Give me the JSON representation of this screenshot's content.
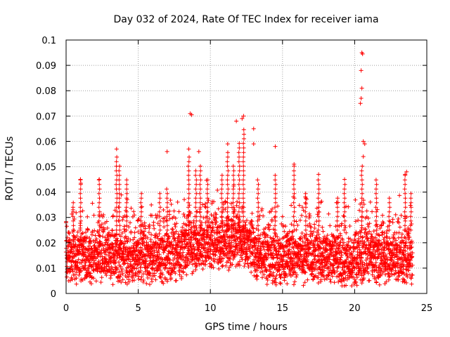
{
  "chart_data": {
    "type": "scatter",
    "title": "Day 032 of 2024, Rate Of TEC Index for receiver iama",
    "xlabel": "GPS time / hours",
    "ylabel": "ROTI / TECUs",
    "xlim": [
      0,
      25
    ],
    "ylim": [
      0,
      0.1
    ],
    "xticks": [
      "0",
      "5",
      "10",
      "15",
      "20",
      "25"
    ],
    "yticks": [
      "0",
      "0.01",
      "0.02",
      "0.03",
      "0.04",
      "0.05",
      "0.06",
      "0.07",
      "0.08",
      "0.09",
      "0.1"
    ],
    "grid": true,
    "marker": "+",
    "color": "#ff0000",
    "notable_points": [
      {
        "x": 8.6,
        "y": 0.071
      },
      {
        "x": 8.7,
        "y": 0.0705
      },
      {
        "x": 12.2,
        "y": 0.069
      },
      {
        "x": 12.3,
        "y": 0.07
      },
      {
        "x": 11.8,
        "y": 0.068
      },
      {
        "x": 13.0,
        "y": 0.065
      },
      {
        "x": 3.5,
        "y": 0.057
      },
      {
        "x": 8.5,
        "y": 0.057
      },
      {
        "x": 9.2,
        "y": 0.056
      },
      {
        "x": 7.0,
        "y": 0.056
      },
      {
        "x": 11.2,
        "y": 0.059
      },
      {
        "x": 13.0,
        "y": 0.059
      },
      {
        "x": 14.5,
        "y": 0.058
      },
      {
        "x": 20.5,
        "y": 0.095
      },
      {
        "x": 20.55,
        "y": 0.0945
      },
      {
        "x": 20.45,
        "y": 0.088
      },
      {
        "x": 20.5,
        "y": 0.081
      },
      {
        "x": 20.45,
        "y": 0.077
      },
      {
        "x": 20.4,
        "y": 0.075
      },
      {
        "x": 20.6,
        "y": 0.06
      },
      {
        "x": 20.7,
        "y": 0.059
      },
      {
        "x": 20.6,
        "y": 0.054
      },
      {
        "x": 1.0,
        "y": 0.045
      },
      {
        "x": 2.3,
        "y": 0.045
      },
      {
        "x": 15.8,
        "y": 0.051
      },
      {
        "x": 17.5,
        "y": 0.047
      },
      {
        "x": 19.3,
        "y": 0.045
      },
      {
        "x": 23.5,
        "y": 0.047
      },
      {
        "x": 23.6,
        "y": 0.048
      }
    ]
  }
}
